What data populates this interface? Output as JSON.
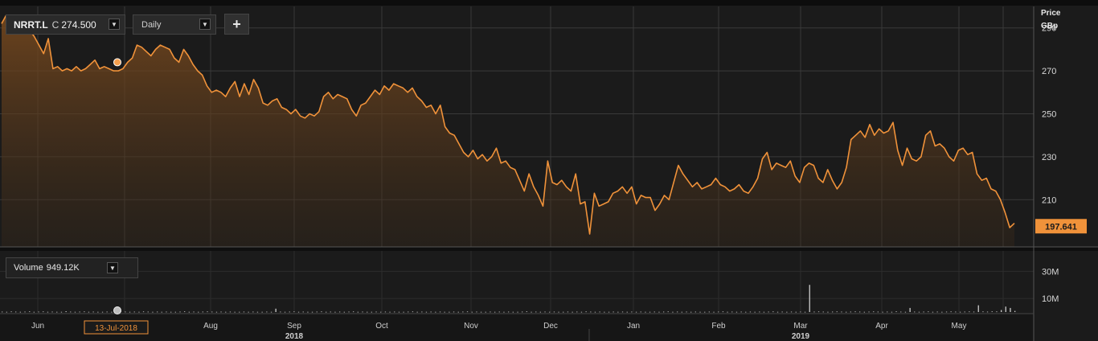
{
  "toolbar": {
    "symbol": "NRRT.L",
    "close_prefix": "C",
    "close_value": "274.500",
    "interval": "Daily",
    "add_label": "+"
  },
  "volume_panel": {
    "label": "Volume",
    "value": "949.12K"
  },
  "chart_data": {
    "type": "area",
    "price_axis": {
      "label_line1": "Price",
      "label_line2": "GBp",
      "ticks": [
        290,
        270,
        250,
        230,
        210
      ],
      "range": [
        188,
        300
      ]
    },
    "volume_axis": {
      "ticks": [
        "30M",
        "10M"
      ],
      "tick_values": [
        30,
        10
      ],
      "range": [
        0,
        45
      ]
    },
    "last_price_label": "197.641",
    "highlight_date_label": "13-Jul-2018",
    "x_axis": {
      "months": [
        "Jun",
        "Aug",
        "Sep",
        "Oct",
        "Nov",
        "Dec",
        "Jan",
        "Feb",
        "Mar",
        "Apr",
        "May"
      ],
      "years": [
        "2018",
        "2019"
      ]
    },
    "series": [
      {
        "values": [
          292,
          296,
          290,
          288,
          290,
          291,
          289,
          286,
          282,
          278,
          285,
          271,
          272,
          270,
          271,
          270,
          272,
          270,
          271,
          273,
          275,
          271,
          272,
          271,
          270,
          270,
          271,
          274,
          276,
          282,
          281,
          279,
          277,
          280,
          282,
          281,
          280,
          276,
          274,
          280,
          277,
          273,
          270,
          268,
          263,
          260,
          261,
          260,
          258,
          262,
          265,
          258,
          264,
          259,
          266,
          262,
          255,
          254,
          256,
          257,
          253,
          252,
          250,
          252,
          249,
          248,
          250,
          249,
          251,
          258,
          260,
          257,
          259,
          258,
          257,
          252,
          249,
          254,
          255,
          258,
          261,
          259,
          263,
          261,
          264,
          263,
          262,
          260,
          262,
          258,
          256,
          253,
          254,
          250,
          254,
          244,
          241,
          240,
          236,
          232,
          230,
          233,
          229,
          231,
          228,
          230,
          234,
          227,
          228,
          225,
          224,
          219,
          214,
          222,
          216,
          212,
          207,
          228,
          218,
          217,
          219,
          216,
          214,
          222,
          208,
          209,
          194,
          213,
          207,
          208,
          209,
          213,
          214,
          216,
          213,
          216,
          208,
          212,
          211,
          211,
          205,
          208,
          212,
          210,
          218,
          226,
          222,
          219,
          216,
          218,
          215,
          216,
          217,
          220,
          217,
          216,
          214,
          215,
          217,
          214,
          213,
          216,
          220,
          229,
          232,
          224,
          227,
          226,
          225,
          228,
          221,
          218,
          225,
          227,
          226,
          220,
          218,
          224,
          219,
          215,
          218,
          225,
          238,
          240,
          242,
          239,
          245,
          240,
          243,
          241,
          242,
          246,
          233,
          226,
          234,
          229,
          228,
          230,
          240,
          242,
          235,
          236,
          234,
          230,
          228,
          233,
          234,
          231,
          232,
          222,
          219,
          220,
          215,
          214,
          210,
          204,
          197,
          199
        ]
      }
    ],
    "volume_series": {
      "values": [
        0.3,
        0.2,
        0.4,
        0.3,
        0.2,
        0.3,
        0.5,
        0.2,
        0.3,
        0.4,
        0.2,
        0.3,
        0.2,
        0.2,
        0.6,
        0.3,
        0.2,
        0.3,
        0.4,
        0.2,
        0.3,
        0.2,
        0.2,
        0.3,
        0.2,
        1.0,
        0.4,
        0.3,
        0.2,
        0.3,
        0.2,
        0.4,
        0.3,
        0.2,
        0.3,
        0.2,
        0.3,
        0.2,
        0.2,
        0.3,
        0.5,
        0.2,
        0.3,
        0.2,
        0.3,
        0.4,
        0.3,
        0.2,
        0.3,
        0.2,
        0.3,
        0.2,
        0.2,
        0.3,
        0.2,
        0.3,
        0.2,
        0.2,
        0.3,
        0.2,
        2.5,
        0.3,
        0.2,
        0.3,
        0.4,
        0.2,
        0.3,
        0.2,
        0.2,
        0.3,
        0.4,
        0.2,
        0.3,
        0.2,
        0.3,
        0.2,
        0.3,
        0.4,
        0.2,
        0.3,
        0.2,
        0.2,
        0.3,
        0.2,
        0.3,
        0.2,
        0.3,
        0.2,
        0.2,
        0.3,
        0.4,
        0.2,
        0.3,
        0.2,
        0.3,
        0.2,
        0.3,
        0.2,
        0.2,
        0.3,
        0.2,
        0.3,
        0.4,
        0.2,
        0.3,
        0.2,
        0.2,
        0.3,
        0.2,
        0.3,
        0.2,
        0.3,
        0.2,
        0.2,
        0.3,
        0.5,
        0.2,
        0.3,
        0.2,
        0.3,
        0.2,
        0.3,
        0.2,
        0.2,
        0.3,
        0.2,
        0.3,
        0.2,
        0.4,
        0.3,
        0.2,
        0.3,
        0.2,
        0.2,
        0.3,
        0.2,
        0.3,
        0.2,
        0.3,
        0.2,
        0.3,
        0.2,
        0.2,
        0.3,
        0.2,
        0.3,
        0.4,
        0.2,
        0.3,
        0.2,
        0.3,
        0.2,
        0.3,
        0.2,
        0.2,
        0.3,
        0.2,
        0.3,
        0.4,
        0.2,
        0.3,
        0.2,
        0.3,
        0.2,
        0.3,
        0.2,
        0.3,
        0.2,
        0.3,
        0.4,
        0.2,
        0.3,
        0.2,
        0.3,
        0.2,
        0.3,
        0.2,
        20.0,
        0.3,
        0.4,
        0.3,
        0.2,
        0.3,
        0.4,
        0.3,
        0.2,
        0.3,
        0.4,
        0.3,
        0.2,
        0.3,
        0.4,
        0.3,
        0.2,
        0.3,
        0.2,
        0.5,
        0.3,
        0.2,
        3.0,
        0.3,
        0.2,
        0.3,
        0.4,
        0.2,
        0.3,
        0.2,
        0.3,
        0.4,
        0.3,
        0.2,
        0.3,
        0.4,
        0.3,
        5.0,
        0.4,
        0.3,
        0.5,
        0.4,
        1.5,
        4.0,
        3.0,
        0.8
      ],
      "unit": "M"
    }
  },
  "colors": {
    "line": "#f0923a",
    "background": "#1b1b1b",
    "grid": "#3a3a3a",
    "volume_bar": "#cccccc",
    "marker": "#f5a04e"
  }
}
